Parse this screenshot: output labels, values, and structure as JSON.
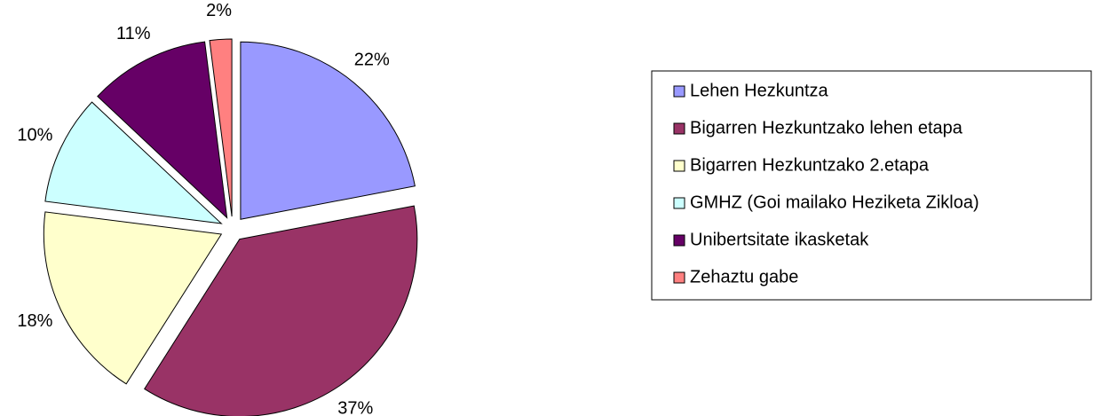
{
  "chart_data": {
    "type": "pie",
    "categories": [
      "Lehen Hezkuntza",
      "Bigarren Hezkuntzako lehen etapa",
      "Bigarren Hezkuntzako 2.etapa",
      "GMHZ (Goi mailako Heziketa Zikloa)",
      "Unibertsitate ikasketak",
      "Zehaztu gabe"
    ],
    "values": [
      22,
      37,
      18,
      10,
      11,
      2
    ],
    "value_labels": [
      "22%",
      "37%",
      "18%",
      "10%",
      "11%",
      "2%"
    ],
    "colors": [
      "#9999ff",
      "#993366",
      "#ffffcc",
      "#ccffff",
      "#660066",
      "#ff8080"
    ],
    "legend": "right"
  }
}
